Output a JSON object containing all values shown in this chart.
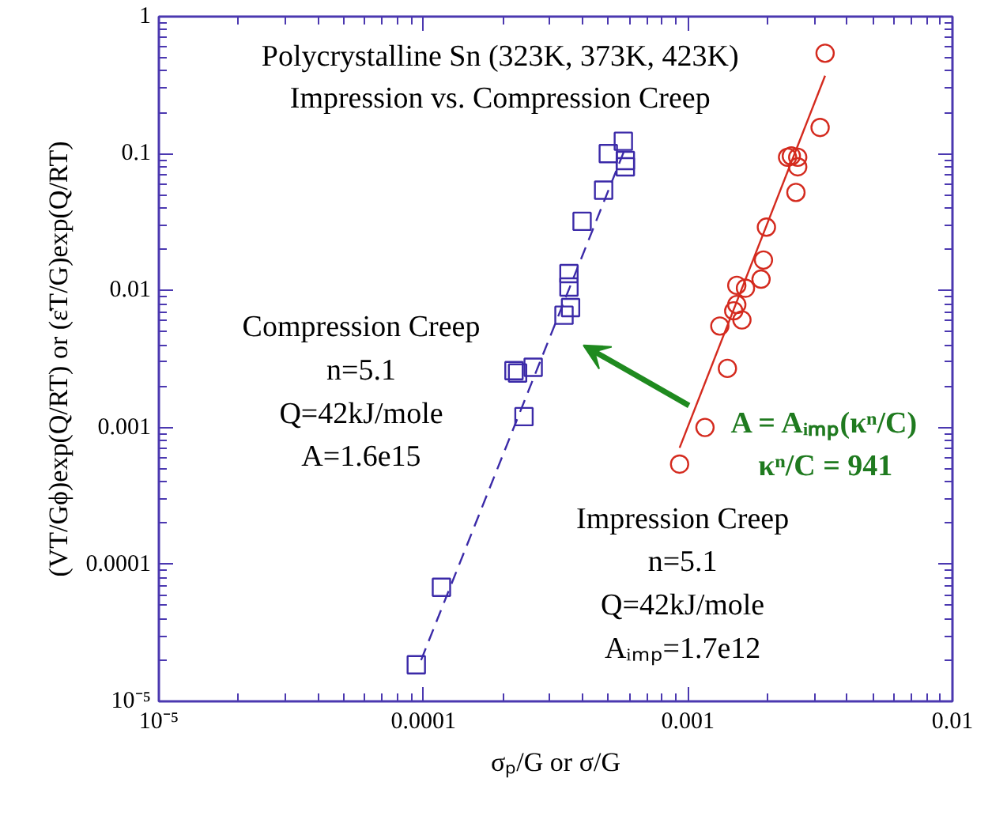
{
  "chart_data": {
    "type": "scatter",
    "title": "Polycrystalline Sn (323K, 373K, 423K)\nImpression vs. Compression Creep",
    "xlabel": "σₚ/G or σ/G",
    "ylabel": "(VT/Gϕ)exp(Q/RT) or (ε̇T/G)exp(Q/RT)",
    "log": "xy",
    "xlim": [
      1e-05,
      0.01
    ],
    "ylim": [
      1e-05,
      1
    ],
    "xticks": [
      {
        "value": 1e-05,
        "label": "10⁻⁵"
      },
      0.0001,
      0.001,
      0.01
    ],
    "yticks": [
      {
        "value": 1e-05,
        "label": "10⁻⁵"
      },
      0.0001,
      0.001,
      0.01,
      0.1,
      1
    ],
    "grid": false,
    "annotations": [
      "Compression Creep\nn=5.1\nQ=42kJ/mole\nA=1.6e15",
      "Impression Creep\nn=5.1\nQ=42kJ/mole\nAᵢₘₚ=1.7e12",
      "A = Aᵢₘₚ(κⁿ/C)\nκⁿ/C = 941"
    ],
    "series": [
      {
        "marker": "square",
        "color": "#3b2aa8",
        "x": [
          9.4e-05,
          0.000117,
          0.00024,
          0.00022,
          0.000227,
          0.00026,
          0.00034,
          0.00036,
          0.000355,
          0.000355,
          0.000398,
          0.00048,
          0.0005,
          0.00057,
          0.00058,
          0.00058
        ],
        "values": [
          1.85e-05,
          6.8e-05,
          0.0012,
          0.0026,
          0.0025,
          0.00275,
          0.0066,
          0.0075,
          0.0106,
          0.0133,
          0.032,
          0.054,
          0.1,
          0.123,
          0.089,
          0.08
        ]
      },
      {
        "marker": "circle",
        "color": "#d42a1e",
        "x": [
          0.00093,
          0.00116,
          0.00141,
          0.00132,
          0.00149,
          0.00153,
          0.0016,
          0.00153,
          0.00165,
          0.00189,
          0.00193,
          0.00198,
          0.00238,
          0.00246,
          0.0026,
          0.0026,
          0.00256,
          0.00316,
          0.0033
        ],
        "values": [
          0.00054,
          0.001,
          0.0027,
          0.0055,
          0.0071,
          0.0079,
          0.0061,
          0.0109,
          0.0104,
          0.0121,
          0.0167,
          0.029,
          0.094,
          0.096,
          0.094,
          0.08,
          0.052,
          0.155,
          0.54
        ]
      },
      {
        "type": "line",
        "line_style": "dashed",
        "color": "#3b2aa8",
        "x": [
          9.8e-05,
          0.00058
        ],
        "values": [
          2e-05,
          0.11
        ]
      },
      {
        "type": "line",
        "line_style": "solid",
        "color": "#d42a1e",
        "x": [
          0.00093,
          0.0033
        ],
        "values": [
          0.00071,
          0.37
        ]
      }
    ]
  }
}
